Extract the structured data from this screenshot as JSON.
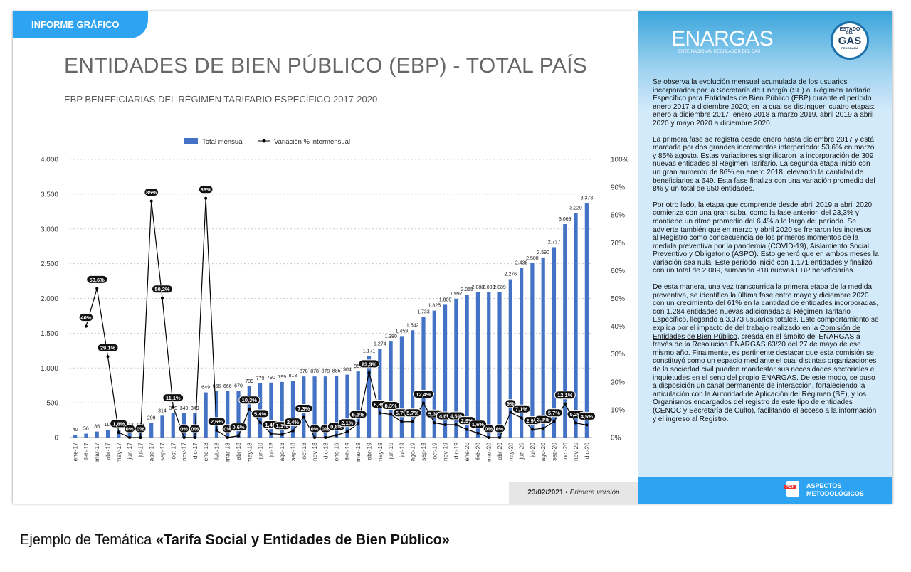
{
  "header": {
    "tab": "INFORME GRÁFICO",
    "footer_date": "23/02/2021",
    "footer_sep": "•",
    "footer_version": "Primera versión"
  },
  "chart_data": {
    "type": "bar_line",
    "title": "ENTIDADES DE BIEN PÚBLICO (EBP) - TOTAL PAÍS",
    "subtitle": "EBP BENEFICIARIAS DEL RÉGIMEN TARIFARIO ESPECÍFICO 2017-2020",
    "categories": [
      "ene-17",
      "feb-17",
      "mar-17",
      "abr-17",
      "may-17",
      "jun-17",
      "jul-17",
      "ago-17",
      "sep-17",
      "oct-17",
      "nov-17",
      "dic-17",
      "ene-18",
      "feb-18",
      "mar-18",
      "abr-18",
      "may-18",
      "jun-18",
      "jul-18",
      "ago-18",
      "sep-18",
      "oct-18",
      "nov-18",
      "dic-18",
      "ene-19",
      "feb-19",
      "mar-19",
      "abr-19",
      "may-19",
      "jun-19",
      "jul-19",
      "ago-19",
      "sep-19",
      "oct-19",
      "nov-19",
      "dic-19",
      "ene-20",
      "feb-20",
      "mar-20",
      "abr-20",
      "may-20",
      "jun-20",
      "jul-20",
      "ago-20",
      "sep-20",
      "oct-20",
      "nov-20",
      "dic-20"
    ],
    "series": [
      {
        "name": "Total mensual",
        "color": "#4472c4",
        "values": [
          40,
          56,
          86,
          111,
          113,
          113,
          113,
          209,
          314,
          349,
          349,
          349,
          649,
          666,
          666,
          670,
          739,
          779,
          790,
          799,
          818,
          878,
          878,
          878,
          885,
          904,
          950,
          1171,
          1274,
          1380,
          1459,
          1542,
          1733,
          1825,
          1909,
          1997,
          2055,
          2088,
          2089,
          2089,
          2276,
          2438,
          2508,
          2590,
          2737,
          3069,
          3229,
          3373
        ],
        "value_labels": [
          "40",
          "56",
          "86",
          "111",
          "113",
          "113",
          "113",
          "209",
          "314",
          "349",
          "349",
          "349",
          "649",
          "666",
          "666",
          "670",
          "739",
          "779",
          "790",
          "799",
          "818",
          "878",
          "878",
          "878",
          "885",
          "904",
          "950",
          "1.171",
          "1.274",
          "1.380",
          "1.459",
          "1.542",
          "1.733",
          "1.825",
          "1.909",
          "1.997",
          "2.055",
          "2.088",
          "2.089",
          "2.089",
          "2.276",
          "2.438",
          "2.508",
          "2.590",
          "2.737",
          "3.069",
          "3.229",
          "3.373"
        ]
      },
      {
        "name": "Variación % intermensual",
        "color": "#000000",
        "axis": "y2",
        "values": [
          null,
          40,
          53.6,
          29.1,
          1.8,
          0,
          0,
          85,
          50.2,
          11.1,
          0,
          0,
          86,
          2.6,
          0,
          0.6,
          10.3,
          5.4,
          1.4,
          1.1,
          2.4,
          7.3,
          0,
          0,
          0.8,
          2.1,
          5.1,
          23.3,
          8.8,
          8.3,
          5.7,
          5.7,
          12.4,
          5.3,
          4.6,
          4.6,
          2.9,
          1.6,
          0,
          0,
          9,
          7.1,
          2.9,
          3.3,
          5.7,
          12.1,
          5.2,
          4.5
        ],
        "value_labels": [
          null,
          "40%",
          "53,6%",
          "29,1%",
          "1,8%",
          "0%",
          "0%",
          "85%",
          "50,2%",
          "11,1%",
          "0%",
          "0%",
          "86%",
          "2,6%",
          "0%",
          "0,6%",
          "10,3%",
          "5,4%",
          "1,4%",
          "1,1%",
          "2,4%",
          "7,3%",
          "0%",
          "0%",
          "0,8%",
          "2,1%",
          "5,1%",
          "23,3%",
          "8,8%",
          "8,3%",
          "5,7%",
          "5,7%",
          "12,4%",
          "5,3%",
          "4,6%",
          "4,6%",
          "2,9%",
          "1,6%",
          "0%",
          "0%",
          "9%",
          "7,1%",
          "2,9%",
          "3,3%",
          "5,7%",
          "12,1%",
          "5,2%",
          "4,5%"
        ]
      }
    ],
    "ylim": [
      0,
      4000
    ],
    "yticks": [
      0,
      500,
      {
        "value": 1000,
        "label": "1.000"
      },
      {
        "value": 1500,
        "label": "1.500"
      },
      {
        "value": 2000,
        "label": "2.000"
      },
      {
        "value": 2500,
        "label": "2.500"
      },
      {
        "value": 3000,
        "label": "3.000"
      },
      {
        "value": 3500,
        "label": "3.500"
      },
      {
        "value": 4000,
        "label": "4.000"
      }
    ],
    "y2lim": [
      0,
      100
    ],
    "y2ticks": [
      {
        "value": 0,
        "label": "0%"
      },
      {
        "value": 10,
        "label": "10%"
      },
      {
        "value": 20,
        "label": "20%"
      },
      {
        "value": 30,
        "label": "30%"
      },
      {
        "value": 40,
        "label": "40%"
      },
      {
        "value": 50,
        "label": "50%"
      },
      {
        "value": 60,
        "label": "60%"
      },
      {
        "value": 70,
        "label": "70%"
      },
      {
        "value": 80,
        "label": "80%"
      },
      {
        "value": 90,
        "label": "90%"
      },
      {
        "value": 100,
        "label": "100%"
      }
    ],
    "grid": true,
    "legend": "top"
  },
  "panel": {
    "logo": "ENARGAS",
    "logo_sub": "ENTE NACIONAL REGULADOR DEL GAS",
    "badge_top": "ESTADO",
    "badge_mid": "DEL",
    "badge_main": "GAS",
    "badge_sub": "PROGRAMA",
    "p1": "Se observa la evolución mensual acumulada de los usuarios incorporados por la Secretaría de Energía (SE) al Régimen Tarifario Específico para Entidades de Bien Público (EBP) durante el período enero 2017 a diciembre 2020; en la cual se distinguen cuatro etapas: enero a diciembre 2017, enero 2018 a marzo 2019, abril 2019 a abril 2020 y mayo 2020 a diciembre 2020.",
    "p2": "La primera fase se registra desde enero hasta diciembre 2017 y está marcada por dos grandes incrementos interperíodo: 53,6% en marzo y 85% agosto. Estas variaciones significaron la incorporación de 309 nuevas entidades al Régimen Tarifario. La segunda etapa inició con un gran aumento de 86% en enero 2018, elevando la cantidad de beneficiarios a 649. Esta fase finaliza con una variación promedio del 8% y un total de 950 entidades.",
    "p3": "Por otro lado, la etapa que comprende desde abril 2019 a abril 2020 comienza con una gran suba, como la fase anterior, del 23,3% y mantiene un ritmo promedio del 6,4% a lo largo del período. Se advierte también que en marzo y abril 2020 se frenaron los ingresos al Registro como consecuencia de los primeros momentos de la medida preventiva por la pandemia (COVID-19), Aislamiento Social Preventivo y Obligatorio (ASPO). Esto generó que en ambos meses la variación sea nula. Este período inició con 1.171 entidades y finalizó con un total de 2.089, sumando 918 nuevas EBP beneficiarias.",
    "p4a": "De esta manera, una vez transcurrida la primera etapa de la medida preventiva, se identifica la última fase entre mayo y diciembre 2020 con un crecimiento del 61% en la cantidad de entidades incorporadas, con 1.284 entidades nuevas adicionadas al Régimen Tarifario Específico, llegando a 3.373 usuarios totales. Este comportamiento se explica por el impacto de del trabajo realizado en la ",
    "p4link": "Comisión de Entidades de Bien Público",
    "p4b": ", creada en el ámbito del ENARGAS a través de la Resolución ENARGAS 63/20 del 27 de mayo de ese mismo año. Finalmente, es pertinente destacar que esta comisión se constituyó como un espacio mediante el cual distintas organizaciones de la sociedad civil pueden manifestar sus necesidades sectoriales e inquietudes en el seno del propio ENARGAS. De este modo, se puso a disposición un canal permanente de interacción, fortaleciendo la articulación con la Autoridad de Aplicación del Régimen (SE), y los Organismos encargados del registro de este tipo de entidades (CENOC y Secretaría de Culto), facilitando el acceso a la información y el ingreso al Registro.",
    "pdf": "PDF",
    "btn1": "ASPECTOS",
    "btn2": "METODOLÓGICOS"
  },
  "caption": {
    "lead": "Ejemplo de Temática ",
    "bold": "«Tarifa Social y Entidades de Bien Público»"
  }
}
